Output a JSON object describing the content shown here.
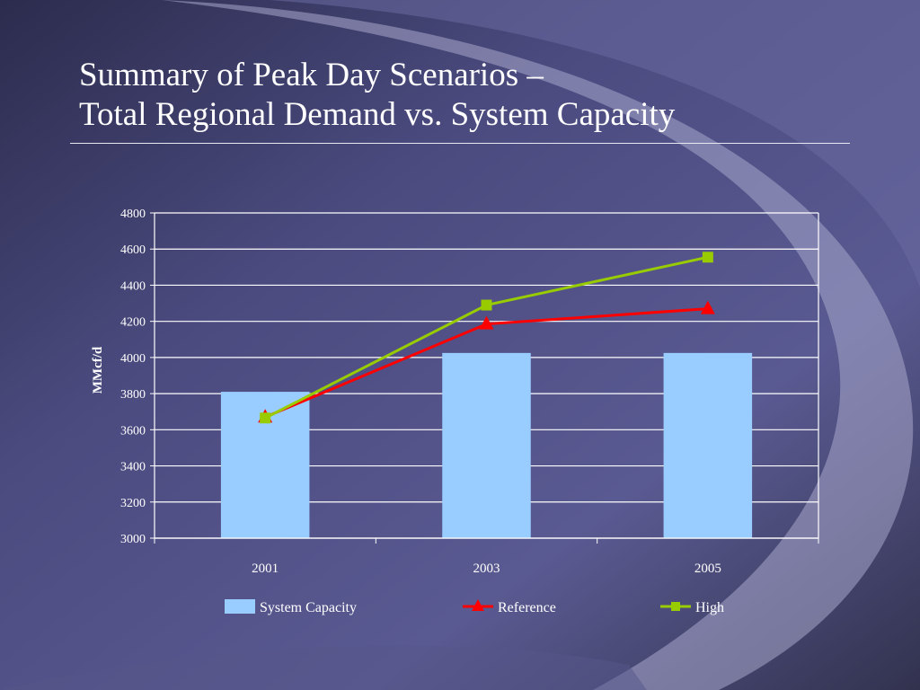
{
  "slide": {
    "title_line1": "Summary of Peak Day Scenarios –",
    "title_line2": "Total Regional Demand vs. System Capacity"
  },
  "colors": {
    "background": "#3a3a64",
    "system_capacity": "#99ccff",
    "reference": "#ff0000",
    "high": "#99cc00",
    "gridline": "#ffffff",
    "text": "#ffffff"
  },
  "chart_data": {
    "type": "bar",
    "categories": [
      "2001",
      "2003",
      "2005"
    ],
    "ylabel": "MMcf/d",
    "xlabel": "",
    "ylim": [
      3000,
      4800
    ],
    "yticks": [
      3000,
      3200,
      3400,
      3600,
      3800,
      4000,
      4200,
      4400,
      4600,
      4800
    ],
    "grid": true,
    "legend_position": "bottom",
    "series": [
      {
        "name": "System Capacity",
        "kind": "bar",
        "marker": "none",
        "values": [
          3810,
          4025,
          4025
        ]
      },
      {
        "name": "Reference",
        "kind": "line",
        "marker": "triangle",
        "values": [
          3670,
          4185,
          4270
        ]
      },
      {
        "name": "High",
        "kind": "line",
        "marker": "square",
        "values": [
          3665,
          4290,
          4555
        ]
      }
    ]
  }
}
